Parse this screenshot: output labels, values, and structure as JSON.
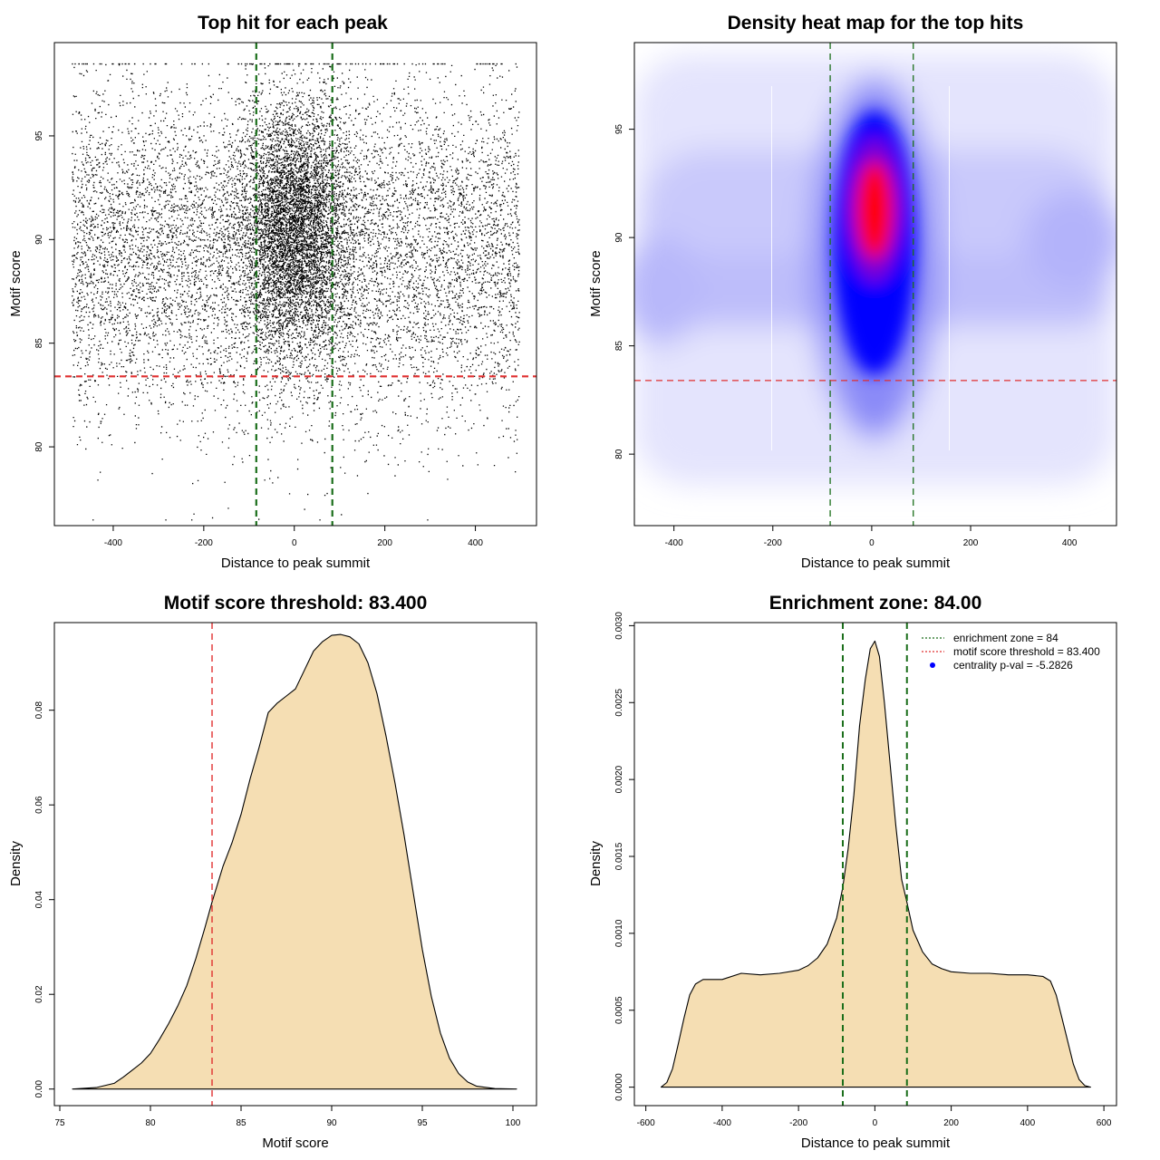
{
  "chart_data": [
    {
      "type": "scatter",
      "title": "Top hit for each peak",
      "xlabel": "Distance to peak summit",
      "ylabel": "Motif score",
      "xlim": [
        -530,
        535
      ],
      "ylim": [
        76.2,
        99.5
      ],
      "xticks": [
        -400,
        -200,
        0,
        200,
        400
      ],
      "yticks": [
        80,
        85,
        90,
        95
      ],
      "reference_lines": [
        {
          "orientation": "vertical",
          "value": -84,
          "color": "#1a6e1a",
          "style": "dashed"
        },
        {
          "orientation": "vertical",
          "value": 84,
          "color": "#1a6e1a",
          "style": "dashed"
        },
        {
          "orientation": "horizontal",
          "value": 83.4,
          "color": "#e03030",
          "style": "dashed"
        }
      ],
      "point_distribution": {
        "n_background": 9000,
        "n_central": 5500,
        "x_range": [
          -492,
          496
        ],
        "score_mean": 89.5,
        "score_sd": 4.0,
        "central_x_sd": 60,
        "central_score_mean": 90.5,
        "central_score_sd": 3.0
      }
    },
    {
      "type": "heatmap",
      "title": "Density heat map for the top hits",
      "xlabel": "Distance to peak summit",
      "ylabel": "Motif score",
      "xlim": [
        -480,
        495
      ],
      "ylim": [
        76.7,
        99.0
      ],
      "xticks": [
        -400,
        -200,
        0,
        200,
        400
      ],
      "yticks": [
        80,
        85,
        90,
        95
      ],
      "colors": {
        "low": "#ffffff",
        "mid": "#0000ff",
        "high": "#ff0000"
      },
      "reference_lines": [
        {
          "orientation": "vertical",
          "value": -84,
          "color": "#1a6e1a",
          "style": "dashed"
        },
        {
          "orientation": "vertical",
          "value": 84,
          "color": "#1a6e1a",
          "style": "dashed"
        },
        {
          "orientation": "horizontal",
          "value": 83.4,
          "color": "#e03030",
          "style": "dashed"
        }
      ]
    },
    {
      "type": "area",
      "title": "Motif score threshold: 83.400",
      "xlabel": "Motif score",
      "ylabel": "Density",
      "xlim": [
        74.7,
        101.3
      ],
      "ylim": [
        -0.0035,
        0.0985
      ],
      "xticks": [
        75,
        80,
        85,
        90,
        95,
        100
      ],
      "yticks": [
        0.0,
        0.02,
        0.04,
        0.06,
        0.08
      ],
      "ytick_labels": [
        "0.00",
        "0.02",
        "0.04",
        "0.06",
        "0.08"
      ],
      "fill": "#f5deb3",
      "x": [
        75.7,
        77,
        78,
        78.5,
        79,
        79.5,
        80,
        80.5,
        81,
        81.5,
        82,
        82.5,
        83,
        83.4,
        84,
        84.5,
        85,
        85.5,
        86,
        86.5,
        87,
        87.5,
        88,
        88.5,
        89,
        89.5,
        90,
        90.5,
        91,
        91.5,
        92,
        92.5,
        93,
        93.5,
        94,
        94.5,
        95,
        95.5,
        96,
        96.5,
        97,
        97.5,
        98,
        99,
        100.2
      ],
      "y": [
        0.0,
        0.0003,
        0.0012,
        0.0025,
        0.004,
        0.0055,
        0.0075,
        0.0105,
        0.0138,
        0.0175,
        0.0218,
        0.0275,
        0.034,
        0.0395,
        0.047,
        0.052,
        0.058,
        0.0655,
        0.0722,
        0.0795,
        0.0815,
        0.083,
        0.0845,
        0.0885,
        0.0925,
        0.0945,
        0.0958,
        0.096,
        0.0955,
        0.094,
        0.09,
        0.0835,
        0.0745,
        0.0645,
        0.0535,
        0.0415,
        0.0295,
        0.0195,
        0.0118,
        0.0065,
        0.0033,
        0.0015,
        0.0006,
        0.0001,
        0.0
      ]
    },
    {
      "type": "area",
      "title": "Enrichment zone: 84.00",
      "xlabel": "Distance to peak summit",
      "ylabel": "Density",
      "xlim": [
        -630,
        633
      ],
      "ylim": [
        -0.00012,
        0.00302
      ],
      "xticks": [
        -600,
        -400,
        -200,
        0,
        200,
        400,
        600
      ],
      "yticks": [
        0.0,
        0.0005,
        0.001,
        0.0015,
        0.002,
        0.0025,
        0.003
      ],
      "ytick_labels": [
        "0.0000",
        "0.0005",
        "0.0010",
        "0.0015",
        "0.0020",
        "0.0025",
        "0.0030"
      ],
      "fill": "#f5deb3",
      "x": [
        -560,
        -545,
        -530,
        -515,
        -500,
        -485,
        -470,
        -450,
        -400,
        -350,
        -300,
        -250,
        -200,
        -175,
        -150,
        -125,
        -100,
        -84,
        -70,
        -55,
        -40,
        -25,
        -12,
        0,
        12,
        25,
        40,
        55,
        70,
        84,
        100,
        125,
        150,
        175,
        200,
        250,
        300,
        350,
        400,
        440,
        460,
        475,
        490,
        505,
        520,
        535,
        550,
        565
      ],
      "y": [
        0.0,
        3e-05,
        0.00012,
        0.00028,
        0.00045,
        0.0006,
        0.00067,
        0.0007,
        0.0007,
        0.00074,
        0.00073,
        0.00074,
        0.00076,
        0.00079,
        0.00084,
        0.00093,
        0.0011,
        0.0013,
        0.00155,
        0.0019,
        0.00235,
        0.00265,
        0.00285,
        0.0029,
        0.0028,
        0.0025,
        0.0021,
        0.0017,
        0.00135,
        0.0012,
        0.00102,
        0.00088,
        0.0008,
        0.00077,
        0.00075,
        0.00074,
        0.00074,
        0.00073,
        0.00073,
        0.00072,
        0.00069,
        0.0006,
        0.00045,
        0.0003,
        0.00015,
        5e-05,
        1e-05,
        0.0
      ],
      "reference_lines": [
        {
          "orientation": "vertical",
          "value": -84,
          "color": "#1a6e1a",
          "style": "dashed"
        },
        {
          "orientation": "vertical",
          "value": 84,
          "color": "#1a6e1a",
          "style": "dashed"
        }
      ],
      "legend": {
        "position": "top-right",
        "entries": [
          {
            "label": "enrichment zone = 84",
            "color": "#1a6e1a",
            "style": "dotted line"
          },
          {
            "label": "motif score threshold = 83.400",
            "color": "#e03030",
            "style": "dotted line"
          },
          {
            "label": "centrality p-val = -5.2826",
            "color": "#0000ff",
            "style": "point"
          }
        ]
      }
    }
  ]
}
